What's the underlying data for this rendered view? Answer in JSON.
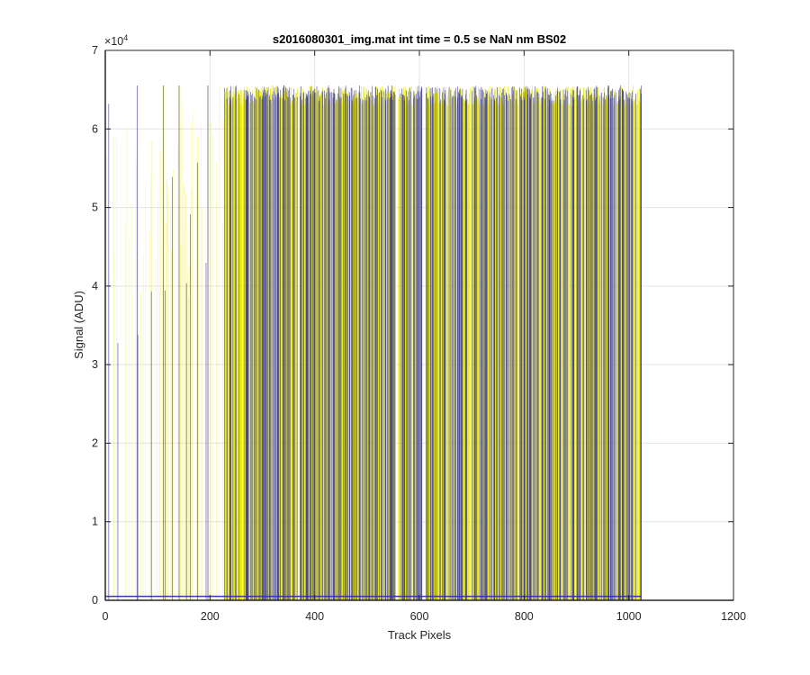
{
  "chart_data": {
    "type": "line",
    "title": "s2016080301_img.mat int time = 0.5 se  NaN nm BS02",
    "xlabel": "Track Pixels",
    "ylabel": "Signal (ADU)",
    "xlim": [
      0,
      1200
    ],
    "ylim": [
      0,
      70000
    ],
    "x_ticks": [
      0,
      200,
      400,
      600,
      800,
      1000,
      1200
    ],
    "y_ticks": [
      0,
      1,
      2,
      3,
      4,
      5,
      6,
      7
    ],
    "y_multiplier": "×10",
    "y_multiplier_exponent": "4",
    "grid": true,
    "legend": "none",
    "series": [
      {
        "color": "#e6e600",
        "style": "dense saturated spikes",
        "x_range": [
          0,
          1024
        ],
        "baseline": 0,
        "saturation_level": 65535,
        "dense_from": 228
      },
      {
        "color": "#3b3b9e",
        "style": "dense saturated spikes",
        "x_range": [
          0,
          1024
        ],
        "baseline": 500,
        "saturation_level": 65535,
        "dense_from": 228
      }
    ]
  }
}
